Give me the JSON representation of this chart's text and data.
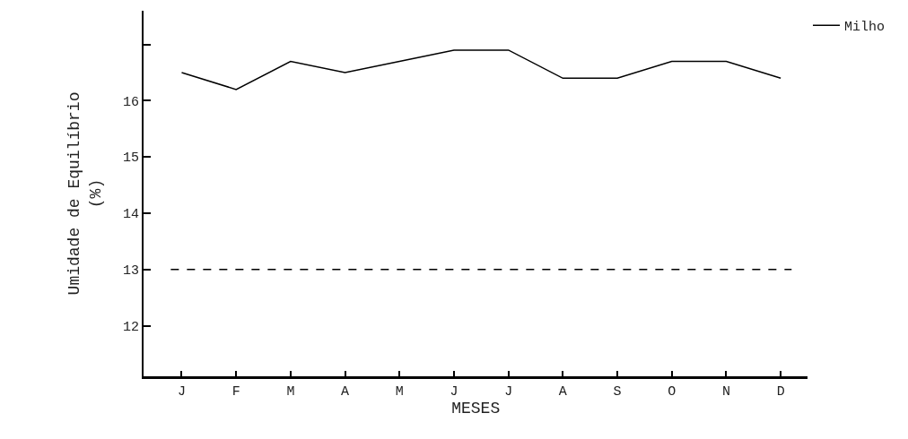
{
  "chart_data": {
    "type": "line",
    "xlabel": "MESES",
    "ylabel": "Umidade de Equilíbrio\n(%)",
    "categories": [
      "J",
      "F",
      "M",
      "A",
      "M",
      "J",
      "J",
      "A",
      "S",
      "O",
      "N",
      "D"
    ],
    "series": [
      {
        "name": "Milho",
        "color": "#000000",
        "values": [
          16.5,
          16.2,
          16.7,
          16.5,
          16.7,
          16.9,
          16.9,
          16.4,
          16.4,
          16.7,
          16.7,
          16.4
        ]
      }
    ],
    "ylim": [
      11.1,
      17.6
    ],
    "yticks": [
      12,
      13,
      14,
      15,
      16,
      {
        "value": 17,
        "label": null
      }
    ],
    "ref_lines": [
      {
        "axis": "y",
        "value": 13,
        "color": "#000000",
        "line_style": "dashed"
      }
    ],
    "legend": "top right",
    "marker": "none",
    "line_style": "solid"
  }
}
